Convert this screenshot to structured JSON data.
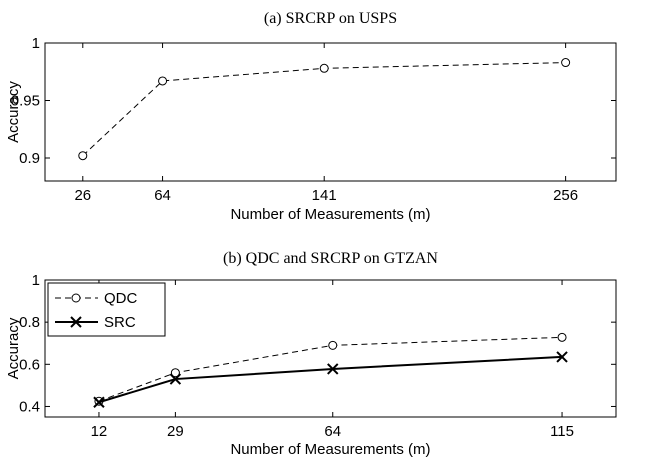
{
  "chart_data": [
    {
      "type": "line",
      "title": "(a)  SRCRP on USPS",
      "xlabel": "Number of Measurements (m)",
      "ylabel": "Accuracy",
      "x_tick_labels": [
        "26",
        "64",
        "141",
        "256"
      ],
      "y_tick_labels": [
        "0.9",
        "0.95",
        "1"
      ],
      "x": [
        26,
        64,
        141,
        256
      ],
      "xlim": [
        8,
        280
      ],
      "ylim": [
        0.88,
        1.0
      ],
      "grid": false,
      "series": [
        {
          "values": [
            0.902,
            0.967,
            0.978,
            0.983
          ],
          "line_style": "dashed",
          "marker": "circle"
        }
      ]
    },
    {
      "type": "line",
      "title": "(b)  QDC and SRCRP on GTZAN",
      "xlabel": "Number of Measurements (m)",
      "ylabel": "Accuracy",
      "x_tick_labels": [
        "12",
        "29",
        "64",
        "115"
      ],
      "y_tick_labels": [
        "0.4",
        "0.6",
        "0.8",
        "1"
      ],
      "x": [
        12,
        29,
        64,
        115
      ],
      "xlim": [
        0,
        127
      ],
      "ylim": [
        0.35,
        1.0
      ],
      "grid": false,
      "legend_position": "top-left",
      "series": [
        {
          "name": "QDC",
          "values": [
            0.425,
            0.56,
            0.69,
            0.728
          ],
          "line_style": "dashed",
          "marker": "circle"
        },
        {
          "name": "SRC",
          "values": [
            0.42,
            0.53,
            0.578,
            0.635
          ],
          "line_style": "solid",
          "marker": "x"
        }
      ]
    }
  ]
}
